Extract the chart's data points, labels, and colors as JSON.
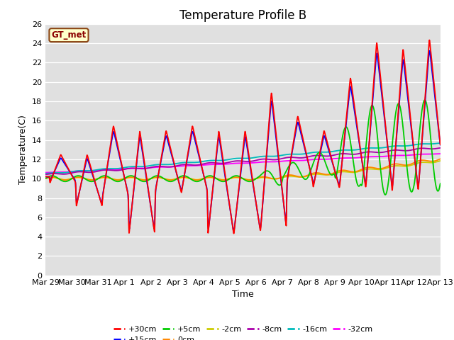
{
  "title": "Temperature Profile B",
  "xlabel": "Time",
  "ylabel": "Temperature(C)",
  "annotation": "GT_met",
  "ylim": [
    0,
    26
  ],
  "xlim": [
    0,
    360
  ],
  "yticks": [
    0,
    2,
    4,
    6,
    8,
    10,
    12,
    14,
    16,
    18,
    20,
    22,
    24,
    26
  ],
  "xtick_labels": [
    "Mar 29",
    "Mar 30",
    "Mar 31",
    "Apr 1",
    "Apr 2",
    "Apr 3",
    "Apr 4",
    "Apr 5",
    "Apr 6",
    "Apr 7",
    "Apr 8",
    "Apr 9",
    "Apr 10",
    "Apr 11",
    "Apr 12",
    "Apr 13"
  ],
  "xtick_positions": [
    0,
    24,
    48,
    72,
    96,
    120,
    144,
    168,
    192,
    216,
    240,
    264,
    288,
    312,
    336,
    360
  ],
  "series_colors": {
    "+30cm": "#ff0000",
    "+15cm": "#0000ff",
    "+5cm": "#00cc00",
    "0cm": "#ff8800",
    "-2cm": "#cccc00",
    "-8cm": "#aa00aa",
    "-16cm": "#00bbbb",
    "-32cm": "#ff00ff"
  },
  "background_color": "#e0e0e0",
  "title_fontsize": 12,
  "axis_fontsize": 9,
  "tick_fontsize": 8,
  "linewidth_surface": 1.3,
  "linewidth_deep": 1.3
}
